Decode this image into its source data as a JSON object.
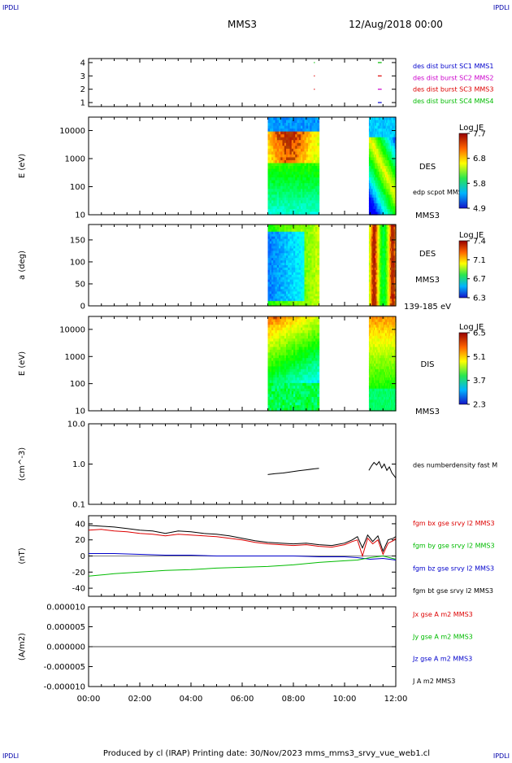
{
  "header": {
    "corner_label": "IPDLI",
    "mission": "MMS3",
    "datetime": "12/Aug/2018 00:00"
  },
  "footer": {
    "credit": "Produced by cl (IRAP)   Printing date: 30/Nov/2023   mms_mms3_srvy_vue_web1.cl"
  },
  "colors": {
    "mms1": "#0000cc",
    "mms2": "#cc00cc",
    "mms3": "#dd0000",
    "mms4": "#00bb00",
    "black": "#000000",
    "corner": "#0000aa"
  },
  "chart_data": {
    "type": "multi-panel time series",
    "x_ticks": [
      "00:00",
      "02:00",
      "04:00",
      "06:00",
      "08:00",
      "10:00",
      "12:00"
    ],
    "x_range_hours": [
      0,
      12
    ],
    "panels": [
      {
        "id": "burst",
        "type": "scatter",
        "y_ticks": [
          "4",
          "3",
          "2",
          "1"
        ],
        "y_range": [
          0.7,
          4.3
        ],
        "legend": [
          {
            "label": "des dist burst SC1 MMS1",
            "color": "#0000cc"
          },
          {
            "label": "des dist burst SC2 MMS2",
            "color": "#cc00cc"
          },
          {
            "label": "des dist burst SC3 MMS3",
            "color": "#dd0000"
          },
          {
            "label": "des dist burst SC4 MMS4",
            "color": "#00bb00"
          }
        ],
        "marks": [
          {
            "t": 8.8,
            "level": 4,
            "color": "#00bb00",
            "dur": 0.02
          },
          {
            "t": 8.8,
            "level": 3,
            "color": "#dd0000",
            "dur": 0.02
          },
          {
            "t": 8.8,
            "level": 2,
            "color": "#dd0000",
            "dur": 0.02
          },
          {
            "t": 11.3,
            "level": 4,
            "color": "#00bb00",
            "dur": 0.15
          },
          {
            "t": 11.3,
            "level": 3,
            "color": "#dd0000",
            "dur": 0.15
          },
          {
            "t": 11.3,
            "level": 2,
            "color": "#cc00cc",
            "dur": 0.15
          },
          {
            "t": 11.3,
            "level": 1,
            "color": "#0000cc",
            "dur": 0.15
          }
        ]
      },
      {
        "id": "des_spec",
        "type": "heatmap",
        "ylabel": "E (eV)",
        "y_ticks": [
          "10000",
          "1000",
          "100",
          "10"
        ],
        "y_tick_values": [
          10000,
          1000,
          100,
          10
        ],
        "y_range": [
          10,
          30000
        ],
        "y_scale": "log",
        "label": "DES",
        "side_text": "edp scpot MMS3",
        "bottom_label": "MMS3",
        "colorbar": {
          "title": "Log JE",
          "ticks": [
            "7.7",
            "6.8",
            "5.8",
            "4.9"
          ],
          "range": [
            4.9,
            7.7
          ]
        },
        "blocks": [
          [
            7.0,
            9.0
          ],
          [
            10.95,
            12.0
          ]
        ]
      },
      {
        "id": "des_pad",
        "type": "heatmap",
        "ylabel": "a (deg)",
        "y_ticks": [
          "150",
          "100",
          "50",
          "0"
        ],
        "y_tick_values": [
          150,
          100,
          50,
          0
        ],
        "y_range": [
          0,
          185
        ],
        "label": "DES",
        "label2": "MMS3",
        "bottom_label": "139-185 eV",
        "colorbar": {
          "title": "Log JE",
          "ticks": [
            "7.4",
            "7.1",
            "6.7",
            "6.3"
          ],
          "range": [
            6.3,
            7.4
          ]
        },
        "blocks": [
          [
            7.0,
            9.0
          ],
          [
            10.95,
            12.0
          ]
        ]
      },
      {
        "id": "dis_spec",
        "type": "heatmap",
        "ylabel": "E (eV)",
        "y_ticks": [
          "10000",
          "1000",
          "100",
          "10"
        ],
        "y_tick_values": [
          10000,
          1000,
          100,
          10
        ],
        "y_range": [
          10,
          30000
        ],
        "y_scale": "log",
        "label": "DIS",
        "bottom_label": "MMS3",
        "colorbar": {
          "title": "Log JE",
          "ticks": [
            "6.5",
            "5.1",
            "3.7",
            "2.3"
          ],
          "range": [
            2.3,
            6.5
          ]
        },
        "blocks": [
          [
            7.0,
            9.0
          ],
          [
            10.95,
            12.0
          ]
        ]
      },
      {
        "id": "density",
        "type": "line",
        "ylabel": "(cm^-3)",
        "y_ticks": [
          "10.0",
          "1.0",
          "0.1"
        ],
        "y_tick_values": [
          10,
          1,
          0.1
        ],
        "y_range": [
          0.1,
          10
        ],
        "y_scale": "log",
        "legend": [
          {
            "label": "des numberdensity fast M",
            "color": "#000000"
          }
        ],
        "segments": [
          {
            "x": [
              7.0,
              7.3,
              7.6,
              7.9,
              8.2,
              8.5,
              8.8,
              9.0
            ],
            "y": [
              0.55,
              0.58,
              0.6,
              0.64,
              0.68,
              0.72,
              0.76,
              0.78
            ]
          },
          {
            "x": [
              10.95,
              11.05,
              11.15,
              11.25,
              11.35,
              11.45,
              11.55,
              11.65,
              11.75,
              11.85,
              11.95,
              12.0
            ],
            "y": [
              0.7,
              0.9,
              1.1,
              0.95,
              1.15,
              0.8,
              1.0,
              0.7,
              0.85,
              0.6,
              0.5,
              0.45
            ]
          }
        ]
      },
      {
        "id": "bfield",
        "type": "line",
        "ylabel": "(nT)",
        "y_ticks": [
          "40",
          "20",
          "0",
          "-20",
          "-40"
        ],
        "y_tick_values": [
          40,
          20,
          0,
          -20,
          -40
        ],
        "y_range": [
          -50,
          50
        ],
        "legend": [
          {
            "label": "fgm bx gse srvy l2 MMS3",
            "color": "#dd0000"
          },
          {
            "label": "fgm by gse srvy l2 MMS3",
            "color": "#00bb00"
          },
          {
            "label": "fgm bz gse srvy l2 MMS3",
            "color": "#0000cc"
          },
          {
            "label": "fgm bt gse srvy l2 MMS3",
            "color": "#000000"
          }
        ],
        "series": [
          {
            "name": "bt",
            "color": "#000000",
            "x": [
              0,
              0.5,
              1,
              1.5,
              2,
              2.5,
              3,
              3.5,
              4,
              4.5,
              5,
              5.5,
              6,
              6.5,
              7,
              7.5,
              8,
              8.5,
              9,
              9.5,
              10,
              10.3,
              10.5,
              10.7,
              10.9,
              11.1,
              11.3,
              11.5,
              11.7,
              11.9,
              12
            ],
            "y": [
              38,
              37,
              36,
              34,
              32,
              31,
              28,
              31,
              30,
              28,
              27,
              25,
              22,
              19,
              17,
              16,
              15,
              16,
              14,
              13,
              16,
              20,
              24,
              10,
              26,
              18,
              25,
              6,
              20,
              22,
              24
            ]
          },
          {
            "name": "bx",
            "color": "#dd0000",
            "x": [
              0,
              0.5,
              1,
              1.5,
              2,
              2.5,
              3,
              3.5,
              4,
              4.5,
              5,
              5.5,
              6,
              6.5,
              7,
              7.5,
              8,
              8.5,
              9,
              9.5,
              10,
              10.3,
              10.5,
              10.7,
              10.9,
              11.1,
              11.3,
              11.5,
              11.7,
              11.9,
              12
            ],
            "y": [
              32,
              33,
              31,
              30,
              28,
              27,
              25,
              27,
              26,
              25,
              24,
              22,
              20,
              17,
              15,
              14,
              13,
              14,
              12,
              11,
              14,
              18,
              20,
              0,
              22,
              15,
              20,
              2,
              16,
              19,
              22
            ]
          },
          {
            "name": "bz",
            "color": "#0000cc",
            "x": [
              0,
              1,
              2,
              3,
              4,
              5,
              6,
              7,
              8,
              9,
              10,
              10.5,
              11,
              11.5,
              12
            ],
            "y": [
              3,
              3,
              2,
              1,
              1,
              0,
              0,
              0,
              0,
              -1,
              -1,
              -2,
              -4,
              -3,
              -5
            ]
          },
          {
            "name": "by",
            "color": "#00bb00",
            "x": [
              0,
              1,
              2,
              3,
              4,
              5,
              6,
              7,
              8,
              9,
              10,
              10.5,
              11,
              11.5,
              12
            ],
            "y": [
              -25,
              -22,
              -20,
              -18,
              -17,
              -15,
              -14,
              -13,
              -11,
              -8,
              -6,
              -5,
              -2,
              0,
              -4
            ]
          }
        ]
      },
      {
        "id": "current",
        "type": "line",
        "ylabel": "(A/m2)",
        "y_ticks": [
          "0.000010",
          "0.000005",
          "0.000000",
          "-0.000005",
          "-0.000010"
        ],
        "y_tick_values": [
          1e-05,
          5e-06,
          0,
          -5e-06,
          -1e-05
        ],
        "y_range": [
          -1e-05,
          1e-05
        ],
        "legend": [
          {
            "label": "Jx gse A m2 MMS3",
            "color": "#dd0000"
          },
          {
            "label": "Jy gse A m2 MMS3",
            "color": "#00bb00"
          },
          {
            "label": "Jz gse A m2 MMS3",
            "color": "#0000cc"
          },
          {
            "label": "J A m2 MMS3",
            "color": "#000000"
          }
        ],
        "series": [
          {
            "name": "J",
            "color": "#000000",
            "x": [
              0,
              6,
              12
            ],
            "y": [
              0,
              0,
              0
            ]
          }
        ]
      }
    ]
  }
}
